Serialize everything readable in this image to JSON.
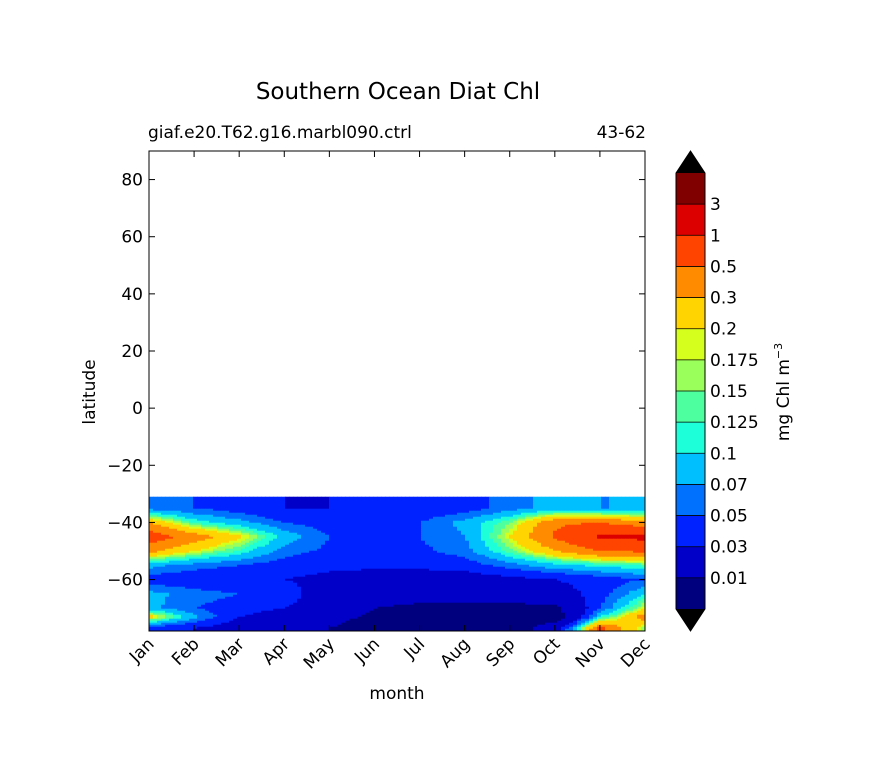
{
  "chart_data": {
    "type": "heatmap",
    "title": "Southern Ocean Diat Chl",
    "subtitle_left": "giaf.e20.T62.g16.marbl090.ctrl",
    "subtitle_right": "43-62",
    "xlabel": "month",
    "ylabel": "latitude",
    "x_categories": [
      "Jan",
      "Feb",
      "Mar",
      "Apr",
      "May",
      "Jun",
      "Jul",
      "Aug",
      "Sep",
      "Oct",
      "Nov",
      "Dec"
    ],
    "y_ticks": [
      80,
      60,
      40,
      20,
      0,
      -20,
      -40,
      -60
    ],
    "y_tick_labels": [
      "80",
      "60",
      "40",
      "20",
      "0",
      "−20",
      "−40",
      "−60"
    ],
    "ylim": [
      -78,
      90
    ],
    "data_lat_range": [
      -78,
      -31
    ],
    "colorbar": {
      "label": "mg Chl m",
      "label_exponent": "−3",
      "levels": [
        0.01,
        0.03,
        0.05,
        0.07,
        0.1,
        0.125,
        0.15,
        0.175,
        0.2,
        0.3,
        0.5,
        1,
        3
      ],
      "tick_labels": [
        "0.01",
        "0.03",
        "0.05",
        "0.07",
        "0.1",
        "0.125",
        "0.15",
        "0.175",
        "0.2",
        "0.3",
        "0.5",
        "1",
        "3"
      ],
      "colors": [
        "#00007f",
        "#0000c8",
        "#0022ff",
        "#0070ff",
        "#00bfff",
        "#1dffd9",
        "#4dff9f",
        "#9aff5a",
        "#d5ff1d",
        "#ffd400",
        "#ff8c00",
        "#ff4400",
        "#dc0000",
        "#800000"
      ],
      "under_color": "#000000",
      "over_color": "#000000"
    },
    "series": [
      {
        "name": "-35",
        "values": [
          0.06,
          0.05,
          0.04,
          0.03,
          0.03,
          0.035,
          0.035,
          0.04,
          0.06,
          0.08,
          0.07,
          0.07
        ]
      },
      {
        "name": "-40",
        "values": [
          0.3,
          0.12,
          0.08,
          0.05,
          0.04,
          0.04,
          0.05,
          0.08,
          0.15,
          0.45,
          0.5,
          0.35
        ]
      },
      {
        "name": "-45",
        "values": [
          0.7,
          0.4,
          0.22,
          0.09,
          0.05,
          0.04,
          0.05,
          0.07,
          0.2,
          0.55,
          1.1,
          1.2
        ]
      },
      {
        "name": "-50",
        "values": [
          0.35,
          0.2,
          0.12,
          0.06,
          0.045,
          0.04,
          0.045,
          0.06,
          0.14,
          0.3,
          0.5,
          0.55
        ]
      },
      {
        "name": "-55",
        "values": [
          0.08,
          0.06,
          0.05,
          0.04,
          0.035,
          0.035,
          0.035,
          0.04,
          0.06,
          0.09,
          0.11,
          0.13
        ]
      },
      {
        "name": "-60",
        "values": [
          0.04,
          0.035,
          0.03,
          0.03,
          0.025,
          0.02,
          0.02,
          0.02,
          0.025,
          0.03,
          0.04,
          0.05
        ]
      },
      {
        "name": "-65",
        "values": [
          0.08,
          0.06,
          0.05,
          0.04,
          0.02,
          0.015,
          0.015,
          0.015,
          0.015,
          0.02,
          0.04,
          0.1
        ]
      },
      {
        "name": "-70",
        "values": [
          0.08,
          0.05,
          0.04,
          0.03,
          0.02,
          0.01,
          0.008,
          0.008,
          0.008,
          0.008,
          0.05,
          0.2
        ]
      },
      {
        "name": "-73",
        "values": [
          0.25,
          0.08,
          0.03,
          0.02,
          0.015,
          0.008,
          0.005,
          0.005,
          0.005,
          0.005,
          0.1,
          0.4
        ]
      },
      {
        "name": "-77",
        "values": [
          0.04,
          0.03,
          0.02,
          0.015,
          0.01,
          0.005,
          0.005,
          0.005,
          0.005,
          0.02,
          0.6,
          0.15
        ]
      }
    ]
  }
}
